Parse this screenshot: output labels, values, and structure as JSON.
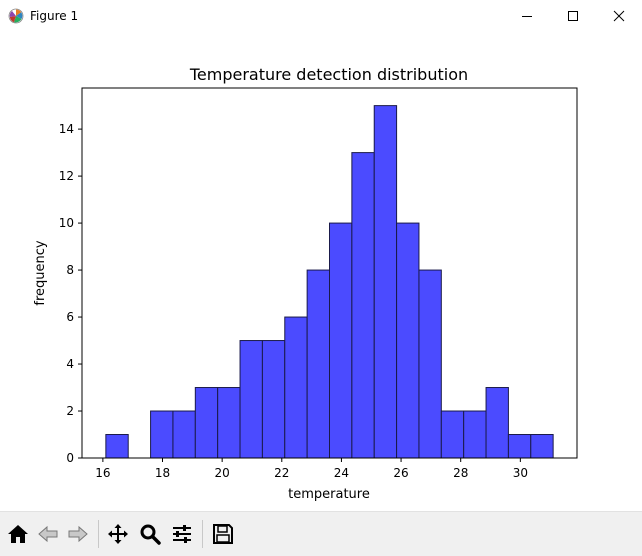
{
  "window": {
    "title": "Figure 1"
  },
  "icons": {
    "app": "matplotlib-logo-icon",
    "minimize": "minimize-icon",
    "maximize": "maximize-icon",
    "close": "close-icon"
  },
  "toolbar": {
    "items": [
      "home-icon",
      "back-arrow-icon",
      "forward-arrow-icon",
      "pan-move-icon",
      "zoom-magnifier-icon",
      "configure-subplots-icon",
      "save-disk-icon"
    ]
  },
  "colors": {
    "bar_fill": "#4b4bff",
    "bar_edge": "#1a1a4a",
    "toolbar_bg": "#f0f0f0"
  },
  "chart_data": {
    "type": "bar",
    "title": "Temperature detection distribution",
    "xlabel": "temperature",
    "ylabel": "frequency",
    "xlim": [
      15.3,
      31.9
    ],
    "ylim": [
      0,
      15.75
    ],
    "xticks": [
      16,
      18,
      20,
      22,
      24,
      26,
      28,
      30
    ],
    "yticks": [
      0,
      2,
      4,
      6,
      8,
      10,
      12,
      14
    ],
    "bin_edges": [
      16.1,
      16.85,
      17.6,
      18.35,
      19.1,
      19.85,
      20.6,
      21.35,
      22.1,
      22.85,
      23.6,
      24.35,
      25.1,
      25.85,
      26.6,
      27.35,
      28.1,
      28.85,
      29.6,
      30.35,
      31.1
    ],
    "values": [
      1,
      0,
      2,
      2,
      3,
      3,
      5,
      5,
      6,
      8,
      10,
      13,
      15,
      10,
      8,
      2,
      2,
      3,
      1,
      1
    ],
    "grid": false
  }
}
